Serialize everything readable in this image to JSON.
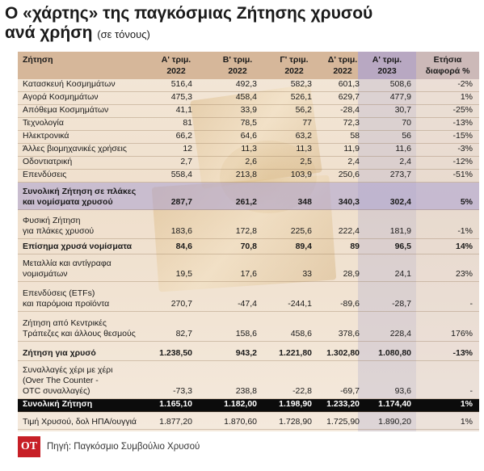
{
  "title": {
    "line1": "Ο «χάρτης» της παγκόσμιας Ζήτησης χρυσού",
    "line2": "ανά χρήση",
    "sub": "(σε τόνους)"
  },
  "headers": {
    "label": "Ζήτηση",
    "q1_2022_a": "Α' τριμ.",
    "q1_2022_b": "2022",
    "q2_2022_a": "Β' τριμ.",
    "q2_2022_b": "2022",
    "q3_2022_a": "Γ' τριμ.",
    "q3_2022_b": "2022",
    "q4_2022_a": "Δ' τριμ.",
    "q4_2022_b": "2022",
    "q1_2023_a": "Α' τριμ.",
    "q1_2023_b": "2023",
    "pct_a": "Ετήσια",
    "pct_b": "διαφορά %"
  },
  "rows": [
    {
      "label": "Κατασκευή Κοσμημάτων",
      "v": [
        "516,4",
        "492,3",
        "582,3",
        "601,3",
        "508,6",
        "-2%"
      ]
    },
    {
      "label": "Αγορά Κοσμημάτων",
      "v": [
        "475,3",
        "458,4",
        "526,1",
        "629,7",
        "477,9",
        "1%"
      ]
    },
    {
      "label": "Απόθεμα Κοσμημάτων",
      "v": [
        "41,1",
        "33,9",
        "56,2",
        "-28,4",
        "30,7",
        "-25%"
      ]
    },
    {
      "label": "Τεχνολογία",
      "v": [
        "81",
        "78,5",
        "77",
        "72,3",
        "70",
        "-13%"
      ]
    },
    {
      "label": "Ηλεκτρονικά",
      "v": [
        "66,2",
        "64,6",
        "63,2",
        "58",
        "56",
        "-15%"
      ]
    },
    {
      "label": "Άλλες βιομηχανικές χρήσεις",
      "v": [
        "12",
        "11,3",
        "11,3",
        "11,9",
        "11,6",
        "-3%"
      ]
    },
    {
      "label": "Οδοντιατρική",
      "v": [
        "2,7",
        "2,6",
        "2,5",
        "2,4",
        "2,4",
        "-12%"
      ]
    },
    {
      "label": "Επενδύσεις",
      "v": [
        "558,4",
        "213,8",
        "103,9",
        "250,6",
        "273,7",
        "-51%"
      ]
    },
    {
      "label": "Συνολική Ζήτηση σε πλάκες",
      "label2": "και νομίσματα χρυσού",
      "v": [
        "287,7",
        "261,2",
        "348",
        "340,3",
        "302,4",
        "5%"
      ]
    },
    {
      "label": "Φυσική Ζήτηση",
      "label2": "για πλάκες χρυσού",
      "v": [
        "183,6",
        "172,8",
        "225,6",
        "222,4",
        "181,9",
        "-1%"
      ]
    },
    {
      "label": "Επίσημα χρυσά νομίσματα",
      "v": [
        "84,6",
        "70,8",
        "89,4",
        "89",
        "96,5",
        "14%"
      ]
    },
    {
      "label": "Μεταλλία και αντίγραφα",
      "label2": "νομισμάτων",
      "v": [
        "19,5",
        "17,6",
        "33",
        "28,9",
        "24,1",
        "23%"
      ]
    },
    {
      "label": "Επενδύσεις (ETFs)",
      "label2": "και παρόμοια προϊόντα",
      "v": [
        "270,7",
        "-47,4",
        "-244,1",
        "-89,6",
        "-28,7",
        "-"
      ]
    },
    {
      "label": "Ζήτηση από Κεντρικές",
      "label2": "Τράπεζες και άλλους θεσμούς",
      "v": [
        "82,7",
        "158,6",
        "458,6",
        "378,6",
        "228,4",
        "176%"
      ]
    },
    {
      "label": "Ζήτηση για χρυσό",
      "v": [
        "1.238,50",
        "943,2",
        "1.221,80",
        "1.302,80",
        "1.080,80",
        "-13%"
      ]
    },
    {
      "label": "Συναλλαγές χέρι με χέρι",
      "label2": "(Over The Counter -",
      "label3": "OTC συναλλαγές)",
      "v": [
        "-73,3",
        "238,8",
        "-22,8",
        "-69,7",
        "93,6",
        "-"
      ]
    },
    {
      "label": "Συνολική Ζήτηση",
      "v": [
        "1.165,10",
        "1.182,00",
        "1.198,90",
        "1.233,20",
        "1.174,40",
        "1%"
      ]
    },
    {
      "label": "Τιμή Χρυσού, δολ ΗΠΑ/ουγγιά",
      "v": [
        "1.877,20",
        "1.870,60",
        "1.728,90",
        "1.725,90",
        "1.890,20",
        "1%"
      ]
    }
  ],
  "footer": {
    "logo": "OT",
    "source": "Πηγή: Παγκόσμιο Συμβούλιο Χρυσού"
  },
  "colors": {
    "header_bg": "#d6b79a",
    "highlight_row": "#aaa0d2",
    "total_row": "#0c0c0c",
    "logo_red": "#c71f26"
  }
}
